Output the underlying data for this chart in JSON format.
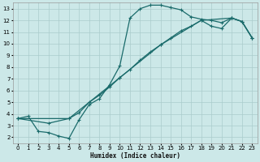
{
  "xlabel": "Humidex (Indice chaleur)",
  "bg_color": "#cce8e8",
  "grid_color": "#aacccc",
  "line_color": "#1a6b6b",
  "xlim": [
    -0.5,
    23.5
  ],
  "ylim": [
    1.5,
    13.5
  ],
  "xticks": [
    0,
    1,
    2,
    3,
    4,
    5,
    6,
    7,
    8,
    9,
    10,
    11,
    12,
    13,
    14,
    15,
    16,
    17,
    18,
    19,
    20,
    21,
    22,
    23
  ],
  "yticks": [
    2,
    3,
    4,
    5,
    6,
    7,
    8,
    9,
    10,
    11,
    12,
    13
  ],
  "curve1_x": [
    0,
    1,
    2,
    3,
    4,
    5,
    6,
    7,
    8,
    9,
    10,
    11,
    12,
    13,
    14,
    15,
    16,
    17,
    18,
    19,
    20,
    21,
    22,
    23
  ],
  "curve1_y": [
    3.6,
    3.8,
    2.5,
    2.4,
    2.1,
    1.9,
    3.5,
    4.8,
    5.3,
    6.5,
    8.1,
    12.2,
    13.0,
    13.3,
    13.3,
    13.1,
    12.9,
    12.3,
    12.1,
    12.0,
    11.8,
    12.2,
    11.9,
    10.5
  ],
  "curve2_x": [
    0,
    3,
    5,
    6,
    7,
    8,
    9,
    10,
    11,
    12,
    13,
    14,
    15,
    16,
    17,
    18,
    19,
    20,
    21,
    22,
    23
  ],
  "curve2_y": [
    3.6,
    3.2,
    3.6,
    4.1,
    5.0,
    5.6,
    6.3,
    7.1,
    7.8,
    8.6,
    9.3,
    9.9,
    10.5,
    11.1,
    11.5,
    12.0,
    11.5,
    11.3,
    12.2,
    11.9,
    10.5
  ],
  "curve3_x": [
    0,
    5,
    10,
    14,
    18,
    21,
    22,
    23
  ],
  "curve3_y": [
    3.6,
    3.6,
    7.1,
    9.9,
    12.0,
    12.2,
    11.9,
    10.5
  ]
}
